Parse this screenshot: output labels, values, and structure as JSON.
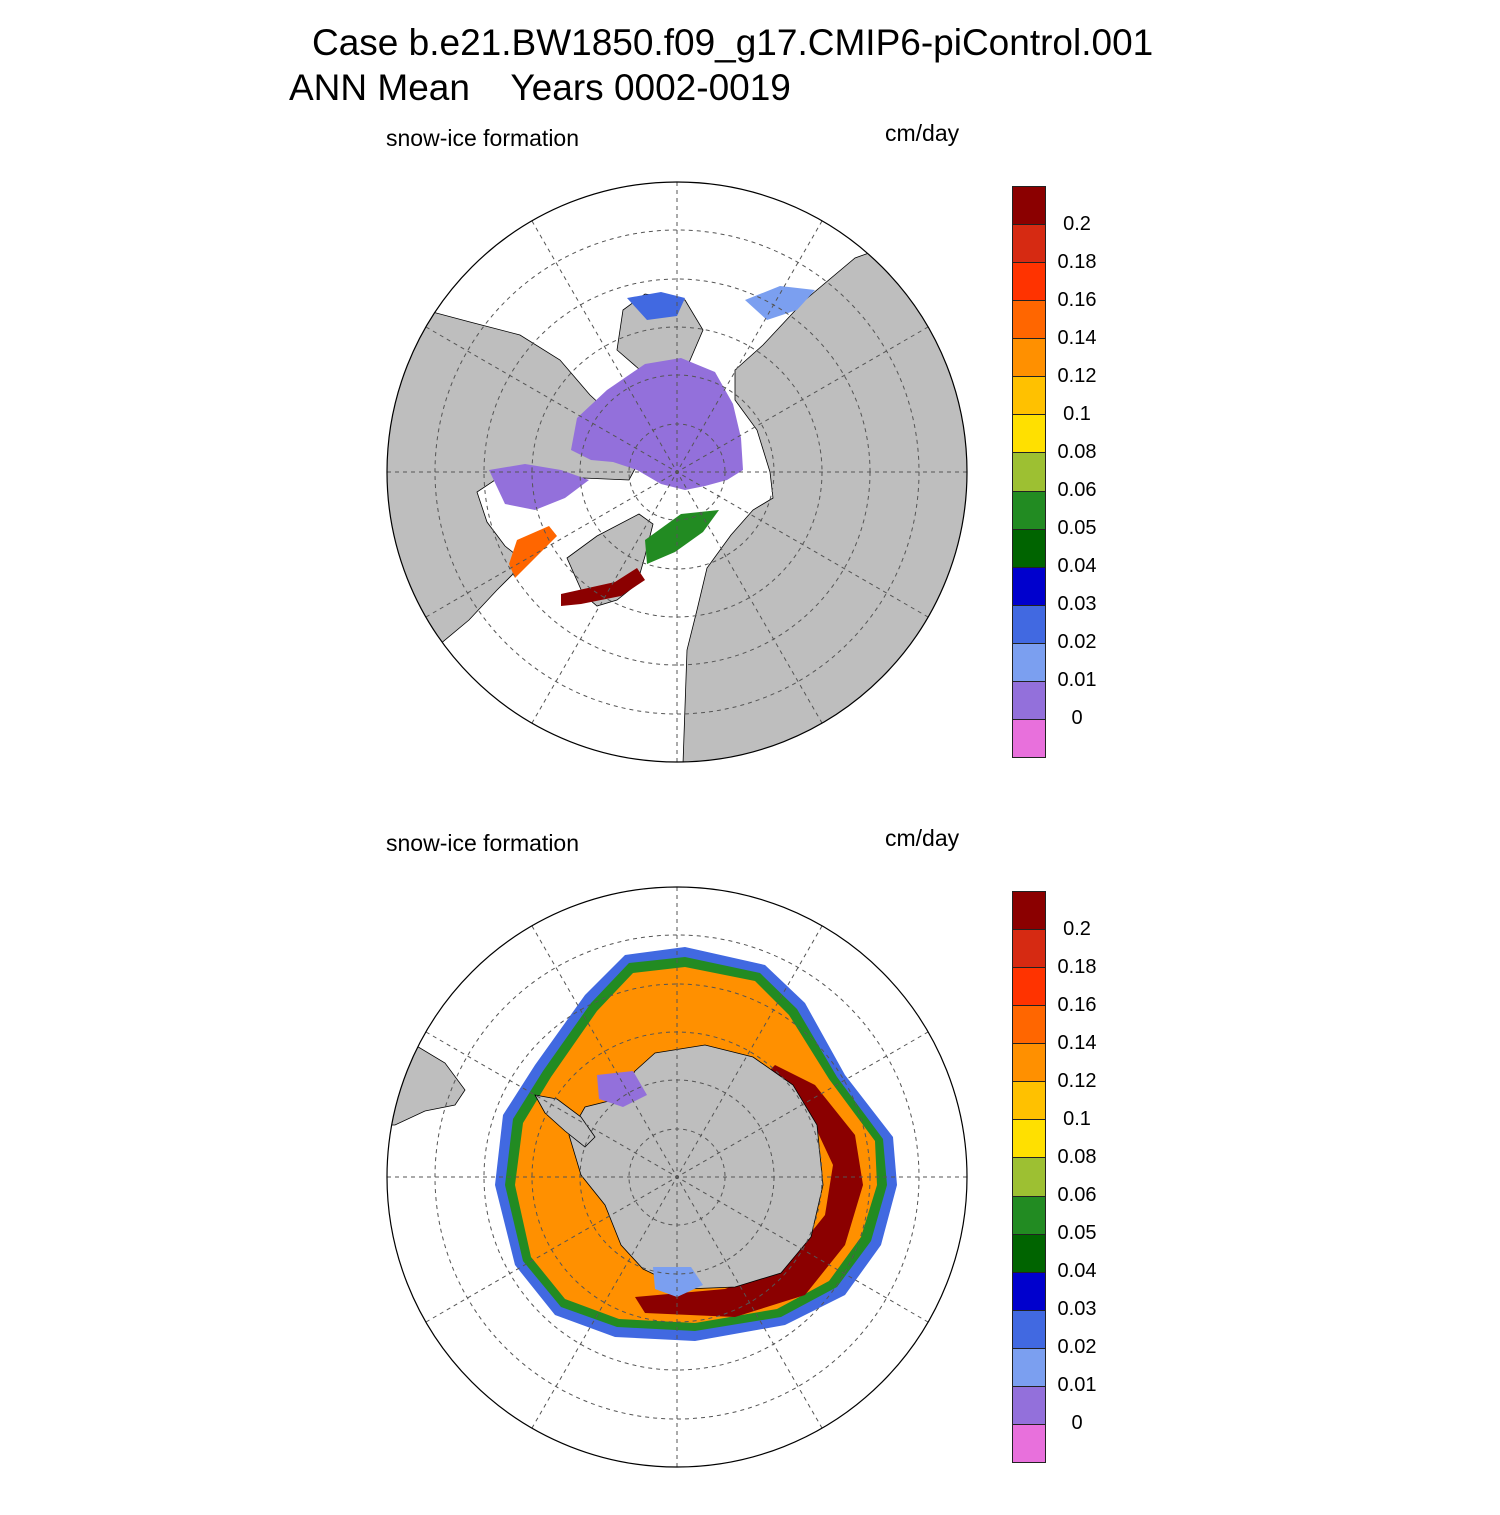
{
  "title": {
    "line1": "Case b.e21.BW1850.f09_g17.CMIP6-piControl.001",
    "line2": "ANN Mean    Years 0002-0019"
  },
  "panels": [
    {
      "hemisphere": "north",
      "variable_label": "snow-ice formation",
      "units_label": "cm/day"
    },
    {
      "hemisphere": "south",
      "variable_label": "snow-ice formation",
      "units_label": "cm/day"
    }
  ],
  "colorbar": {
    "colors_top_to_bottom": [
      "#8b0000",
      "#d62a12",
      "#ff3300",
      "#ff6600",
      "#ff9000",
      "#ffc100",
      "#ffe000",
      "#9dc032",
      "#228b22",
      "#006400",
      "#0000cd",
      "#4169e1",
      "#7b9ff0",
      "#9370db",
      "#e870dc"
    ],
    "labels_top_to_bottom": [
      "0.2",
      "0.18",
      "0.16",
      "0.14",
      "0.12",
      "0.1",
      "0.08",
      "0.06",
      "0.05",
      "0.04",
      "0.03",
      "0.02",
      "0.01",
      "0"
    ]
  },
  "map_colors": {
    "land": "#bebebe",
    "ocean": "#ffffff",
    "grid": "#555555"
  }
}
